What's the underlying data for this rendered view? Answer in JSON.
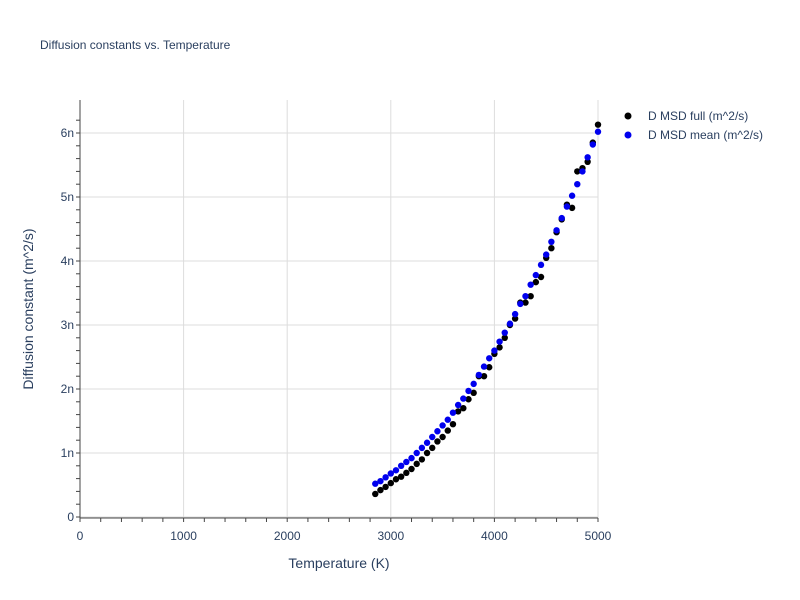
{
  "chart_data": {
    "type": "scatter",
    "title": "Diffusion constants vs. Temperature",
    "xlabel": "Temperature (K)",
    "ylabel": "Diffusion constant (m^2/s)",
    "xlim": [
      0,
      5000
    ],
    "ylim": [
      0,
      6.5e-09
    ],
    "xticks": [
      0,
      1000,
      2000,
      3000,
      4000,
      5000
    ],
    "xtick_labels": [
      "0",
      "1000",
      "2000",
      "3000",
      "4000",
      "5000"
    ],
    "yticks": [
      0,
      1e-09,
      2e-09,
      3e-09,
      4e-09,
      5e-09,
      6e-09
    ],
    "ytick_labels": [
      "0",
      "1n",
      "2n",
      "3n",
      "4n",
      "5n",
      "6n"
    ],
    "grid": true,
    "legend_position": "top-right, outside plot area",
    "series": [
      {
        "name": "D MSD full (m^2/s)",
        "color": "#000000",
        "x": [
          2850,
          2900,
          2950,
          3000,
          3050,
          3100,
          3150,
          3200,
          3250,
          3300,
          3350,
          3400,
          3450,
          3500,
          3550,
          3600,
          3650,
          3700,
          3750,
          3800,
          3850,
          3900,
          3950,
          4000,
          4050,
          4100,
          4150,
          4200,
          4250,
          4300,
          4350,
          4400,
          4450,
          4500,
          4550,
          4600,
          4650,
          4700,
          4750,
          4800,
          4850,
          4900,
          4950,
          5000
        ],
        "y": [
          3.6e-10,
          4.2e-10,
          4.7e-10,
          5.3e-10,
          5.9e-10,
          6.3e-10,
          6.9e-10,
          7.5e-10,
          8.3e-10,
          9e-10,
          1e-09,
          1.08e-09,
          1.18e-09,
          1.25e-09,
          1.35e-09,
          1.45e-09,
          1.65e-09,
          1.7e-09,
          1.84e-09,
          1.94e-09,
          2.2e-09,
          2.2e-09,
          2.34e-09,
          2.55e-09,
          2.65e-09,
          2.8e-09,
          3e-09,
          3.1e-09,
          3.35e-09,
          3.35e-09,
          3.45e-09,
          3.67e-09,
          3.75e-09,
          4.05e-09,
          4.2e-09,
          4.45e-09,
          4.65e-09,
          4.88e-09,
          4.83e-09,
          5.4e-09,
          5.45e-09,
          5.55e-09,
          5.85e-09,
          6.13e-09
        ]
      },
      {
        "name": "D MSD mean (m^2/s)",
        "color": "#0000ee",
        "x": [
          2850,
          2900,
          2950,
          3000,
          3050,
          3100,
          3150,
          3200,
          3250,
          3300,
          3350,
          3400,
          3450,
          3500,
          3550,
          3600,
          3650,
          3700,
          3750,
          3800,
          3850,
          3900,
          3950,
          4000,
          4050,
          4100,
          4150,
          4200,
          4250,
          4300,
          4350,
          4400,
          4450,
          4500,
          4550,
          4600,
          4650,
          4700,
          4750,
          4800,
          4850,
          4900,
          4950,
          5000
        ],
        "y": [
          5.2e-10,
          5.6e-10,
          6.2e-10,
          6.8e-10,
          7.3e-10,
          8e-10,
          8.6e-10,
          9.2e-10,
          1e-09,
          1.08e-09,
          1.16e-09,
          1.25e-09,
          1.34e-09,
          1.43e-09,
          1.52e-09,
          1.63e-09,
          1.75e-09,
          1.85e-09,
          1.97e-09,
          2.08e-09,
          2.22e-09,
          2.35e-09,
          2.48e-09,
          2.6e-09,
          2.74e-09,
          2.88e-09,
          3.02e-09,
          3.17e-09,
          3.33e-09,
          3.45e-09,
          3.63e-09,
          3.78e-09,
          3.94e-09,
          4.1e-09,
          4.3e-09,
          4.48e-09,
          4.67e-09,
          4.85e-09,
          5.02e-09,
          5.2e-09,
          5.4e-09,
          5.62e-09,
          5.82e-09,
          6.02e-09
        ]
      }
    ]
  }
}
